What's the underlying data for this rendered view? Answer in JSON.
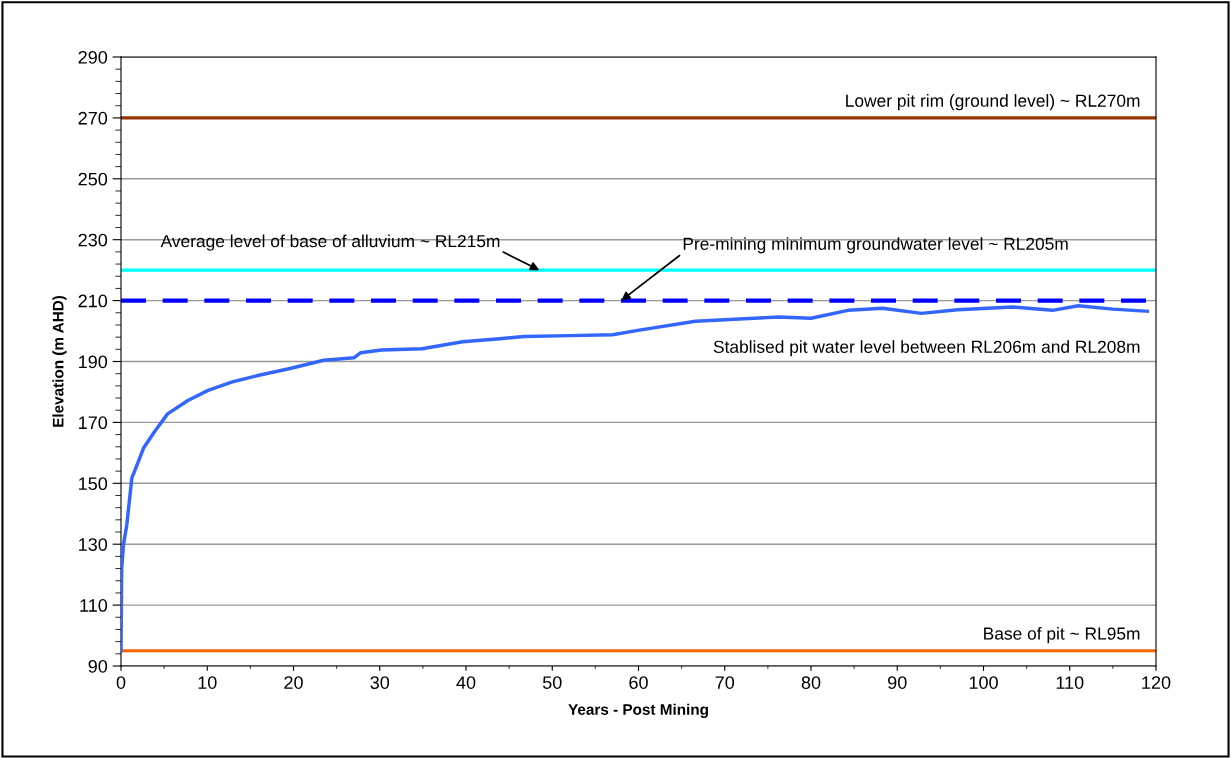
{
  "chart_data": {
    "type": "line",
    "xlabel": "Years - Post Mining",
    "ylabel": "Elevation (m AHD)",
    "x": [
      0,
      0.08,
      0.28,
      0.67,
      1.26,
      1.85,
      2.64,
      3.82,
      5.4,
      7.76,
      10.1,
      12.9,
      16.0,
      19.6,
      23.5,
      27.0,
      27.8,
      30.2,
      34.9,
      39.6,
      43.9,
      46.7,
      52,
      57.0,
      60.1,
      66.6,
      76.2,
      80,
      84.3,
      88.3,
      92.8,
      97,
      103.4,
      108,
      111,
      115,
      119
    ],
    "series": [
      {
        "color": "#3366ff",
        "values": [
          95,
          122,
          129.7,
          136.3,
          151.8,
          156,
          161.7,
          166.7,
          172.8,
          177.2,
          180.5,
          183.3,
          185.5,
          187.7,
          190.4,
          191.2,
          192.9,
          193.8,
          194.2,
          196.5,
          197.5,
          198.2,
          198.5,
          198.8,
          200.3,
          203.2,
          204.6,
          204.2,
          206.8,
          207.5,
          205.8,
          207,
          207.9,
          206.8,
          208.3,
          207.2,
          206.5
        ]
      }
    ],
    "xlim": [
      0,
      120
    ],
    "xticks": [
      0,
      10,
      20,
      30,
      40,
      50,
      60,
      70,
      80,
      90,
      100,
      110,
      120
    ],
    "ylim": [
      90,
      290
    ],
    "yticks": [
      90,
      110,
      130,
      150,
      170,
      190,
      210,
      230,
      250,
      270,
      290
    ],
    "grid": "y",
    "legend": false,
    "marker": "none",
    "line_style": "solid",
    "ref_lines": [
      {
        "axis": "y",
        "value": 270,
        "label": "Lower pit rim (ground level) ~ RL270m",
        "color": "#993300",
        "line_style": "solid"
      },
      {
        "axis": "y",
        "value": 220,
        "color": "#00ffff",
        "line_style": "solid"
      },
      {
        "axis": "y",
        "value": 210,
        "color": "#0000ff",
        "line_style": "dashed"
      },
      {
        "axis": "y",
        "value": 95,
        "label": "Base of pit ~ RL95m",
        "color": "#ff6600",
        "line_style": "solid"
      }
    ],
    "annotations": [
      {
        "text": "Average level of base of alluvium ~ RL215m",
        "x": 48.5,
        "y": 220
      },
      {
        "text": "Pre-mining minimum groundwater level ~ RL205m",
        "x": 58,
        "y": 210
      },
      "Stablised pit water level between RL206m and RL208m"
    ]
  }
}
